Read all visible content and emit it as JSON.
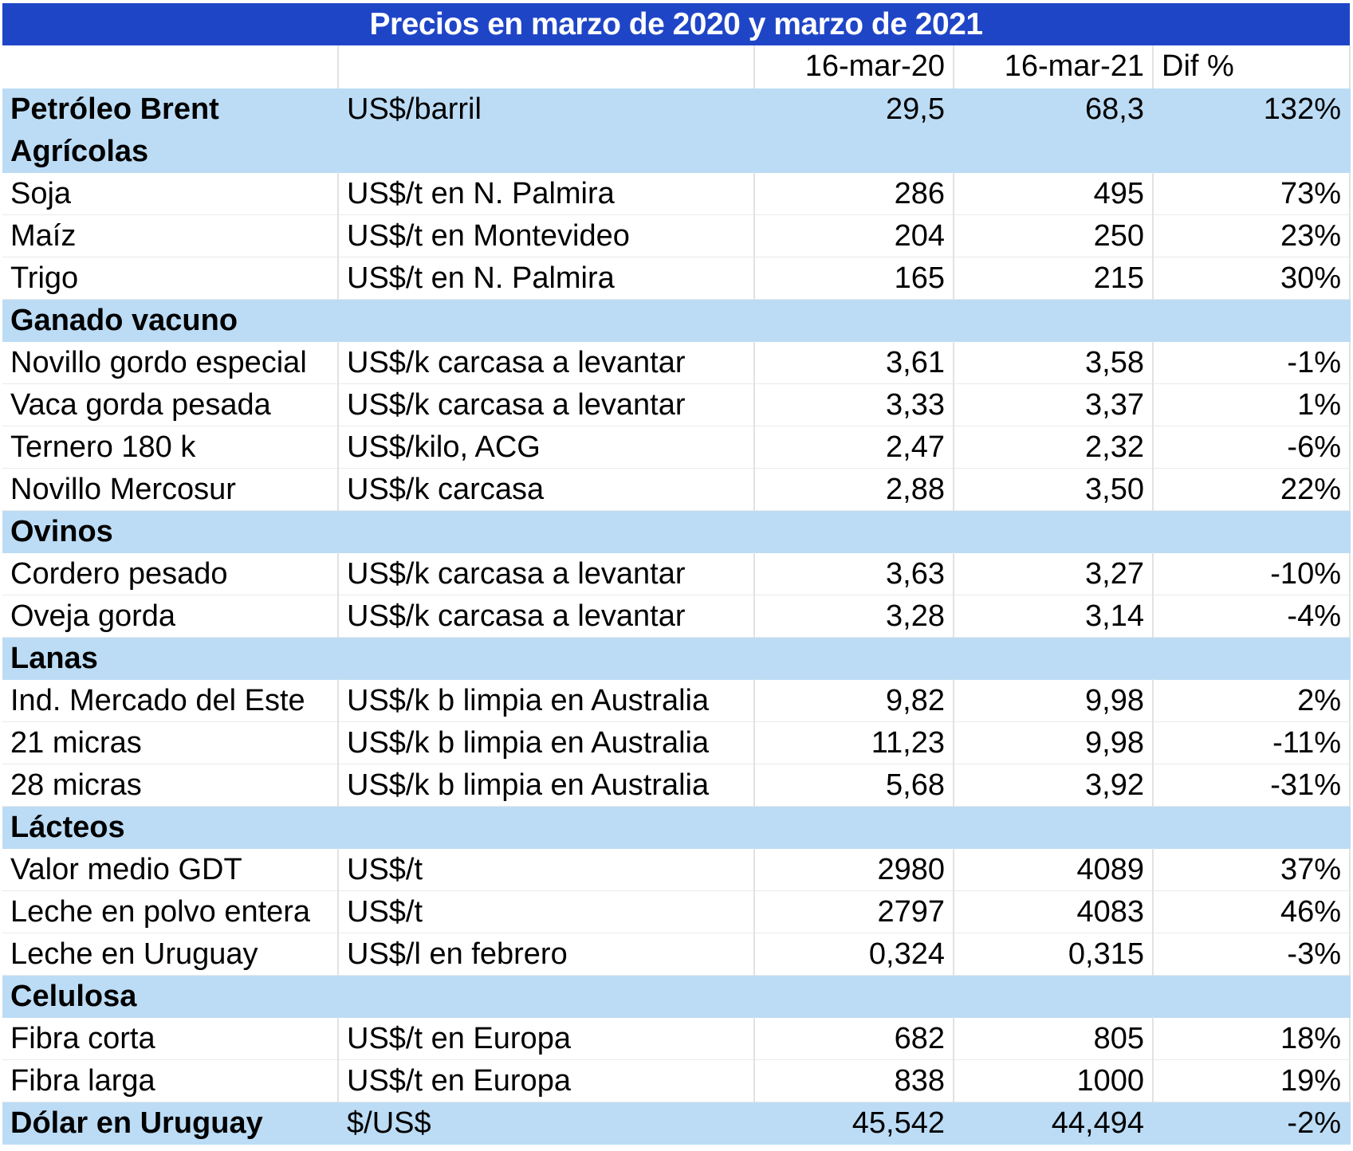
{
  "title": "Precios en marzo de 2020 y marzo de 2021",
  "colors": {
    "title_bg": "#1f45c7",
    "section_bg": "#bcdcf5"
  },
  "header": {
    "col_a": "",
    "col_b": "",
    "date1": "16-mar-20",
    "date2": "16-mar-21",
    "dif": "Dif %"
  },
  "rows": [
    {
      "type": "highlight",
      "name": "Petróleo Brent",
      "unit": "US$/barril",
      "v1": "29,5",
      "v2": "68,3",
      "dif": "132%"
    },
    {
      "type": "section",
      "name": "Agrícolas"
    },
    {
      "type": "item",
      "name": "Soja",
      "unit": "US$/t en N. Palmira",
      "v1": "286",
      "v2": "495",
      "dif": "73%"
    },
    {
      "type": "item",
      "name": "Maíz",
      "unit": "US$/t en Montevideo",
      "v1": "204",
      "v2": "250",
      "dif": "23%"
    },
    {
      "type": "item",
      "name": "Trigo",
      "unit": "US$/t en N. Palmira",
      "v1": "165",
      "v2": "215",
      "dif": "30%"
    },
    {
      "type": "section",
      "name": "Ganado vacuno"
    },
    {
      "type": "item",
      "name": "Novillo gordo especial",
      "unit": "US$/k carcasa a levantar",
      "v1": "3,61",
      "v2": "3,58",
      "dif": "-1%"
    },
    {
      "type": "item",
      "name": "Vaca gorda pesada",
      "unit": "US$/k carcasa a levantar",
      "v1": "3,33",
      "v2": "3,37",
      "dif": "1%"
    },
    {
      "type": "item",
      "name": "Ternero 180 k",
      "unit": "US$/kilo, ACG",
      "v1": "2,47",
      "v2": "2,32",
      "dif": "-6%"
    },
    {
      "type": "item",
      "name": "Novillo Mercosur",
      "unit": "US$/k carcasa",
      "v1": "2,88",
      "v2": "3,50",
      "dif": "22%"
    },
    {
      "type": "section",
      "name": "Ovinos"
    },
    {
      "type": "item",
      "name": "Cordero pesado",
      "unit": "US$/k carcasa a levantar",
      "v1": "3,63",
      "v2": "3,27",
      "dif": "-10%"
    },
    {
      "type": "item",
      "name": "Oveja gorda",
      "unit": "US$/k carcasa a levantar",
      "v1": "3,28",
      "v2": "3,14",
      "dif": "-4%"
    },
    {
      "type": "section",
      "name": "Lanas"
    },
    {
      "type": "item",
      "name": "Ind. Mercado del Este",
      "unit": "US$/k b limpia en Australia",
      "v1": "9,82",
      "v2": "9,98",
      "dif": "2%"
    },
    {
      "type": "item",
      "name": "21 micras",
      "unit": "US$/k b limpia en Australia",
      "v1": "11,23",
      "v2": "9,98",
      "dif": "-11%"
    },
    {
      "type": "item",
      "name": "28 micras",
      "unit": "US$/k b limpia en Australia",
      "v1": "5,68",
      "v2": "3,92",
      "dif": "-31%"
    },
    {
      "type": "section",
      "name": "Lácteos"
    },
    {
      "type": "item",
      "name": "Valor medio GDT",
      "unit": "US$/t",
      "v1": "2980",
      "v2": "4089",
      "dif": "37%"
    },
    {
      "type": "item",
      "name": "Leche en polvo entera",
      "unit": "US$/t",
      "v1": "2797",
      "v2": "4083",
      "dif": "46%"
    },
    {
      "type": "item",
      "name": "Leche en Uruguay",
      "unit": "US$/l en febrero",
      "v1": "0,324",
      "v2": "0,315",
      "dif": "-3%"
    },
    {
      "type": "section",
      "name": "Celulosa"
    },
    {
      "type": "item",
      "name": "Fibra corta",
      "unit": "US$/t en Europa",
      "v1": "682",
      "v2": "805",
      "dif": "18%"
    },
    {
      "type": "item",
      "name": "Fibra larga",
      "unit": "US$/t en Europa",
      "v1": "838",
      "v2": "1000",
      "dif": "19%"
    },
    {
      "type": "highlight",
      "name": "Dólar en Uruguay",
      "unit": "$/US$",
      "v1": "45,542",
      "v2": "44,494",
      "dif": "-2%"
    }
  ]
}
